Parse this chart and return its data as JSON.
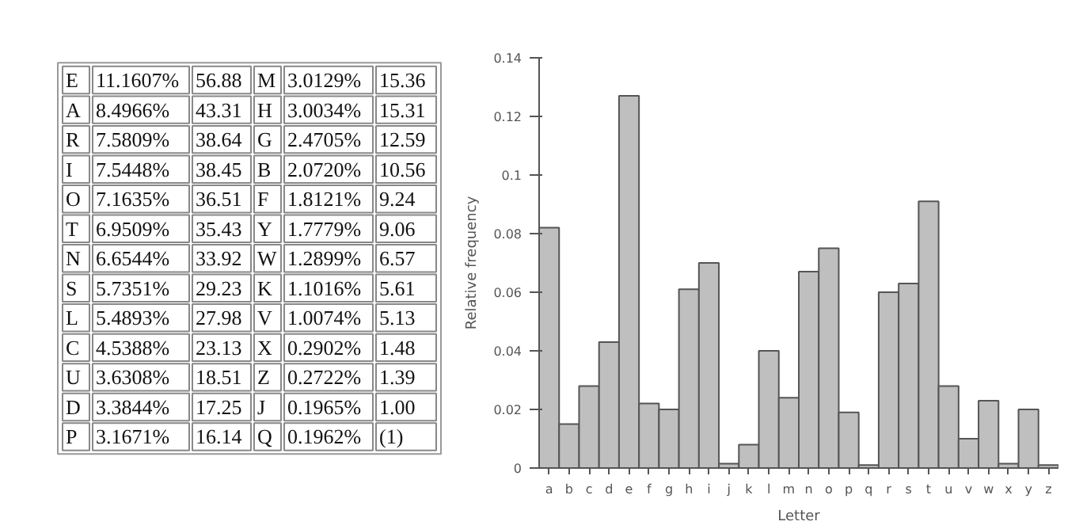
{
  "chart_data": [
    {
      "type": "other",
      "annotations": [
        "E",
        "11.1607%",
        "56.88",
        "M",
        "3.0129%",
        "15.36",
        "A",
        "8.4966%",
        "43.31",
        "H",
        "3.0034%",
        "15.31",
        "R",
        "7.5809%",
        "38.64",
        "G",
        "2.4705%",
        "12.59",
        "I",
        "7.5448%",
        "38.45",
        "B",
        "2.0720%",
        "10.56",
        "O",
        "7.1635%",
        "36.51",
        "F",
        "1.8121%",
        "9.24",
        "T",
        "6.9509%",
        "35.43",
        "Y",
        "1.7779%",
        "9.06",
        "N",
        "6.6544%",
        "33.92",
        "W",
        "1.2899%",
        "6.57",
        "S",
        "5.7351%",
        "29.23",
        "K",
        "1.1016%",
        "5.61",
        "L",
        "5.4893%",
        "27.98",
        "V",
        "1.0074%",
        "5.13",
        "C",
        "4.5388%",
        "23.13",
        "X",
        "0.2902%",
        "1.48",
        "U",
        "3.6308%",
        "18.51",
        "Z",
        "0.2722%",
        "1.39",
        "D",
        "3.3844%",
        "17.25",
        "J",
        "0.1965%",
        "1.00",
        "P",
        "3.1671%",
        "16.14",
        "Q",
        "0.1962%",
        "(1)"
      ]
    },
    {
      "type": "bar",
      "xlabel": "Letter",
      "ylabel": "Relative frequency",
      "categories": [
        "a",
        "b",
        "c",
        "d",
        "e",
        "f",
        "g",
        "h",
        "i",
        "j",
        "k",
        "l",
        "m",
        "n",
        "o",
        "p",
        "q",
        "r",
        "s",
        "t",
        "u",
        "v",
        "w",
        "x",
        "y",
        "z"
      ],
      "values": [
        0.082,
        0.015,
        0.028,
        0.043,
        0.127,
        0.022,
        0.02,
        0.061,
        0.07,
        0.0015,
        0.008,
        0.04,
        0.024,
        0.067,
        0.075,
        0.019,
        0.001,
        0.06,
        0.063,
        0.091,
        0.028,
        0.01,
        0.023,
        0.0015,
        0.02,
        0.001
      ],
      "color": "#bfbfbf",
      "ylim": [
        0,
        0.14
      ],
      "yticks": [
        0,
        0.02,
        0.04,
        0.06,
        0.08,
        0.1,
        0.12,
        0.14
      ],
      "grid": false
    }
  ]
}
